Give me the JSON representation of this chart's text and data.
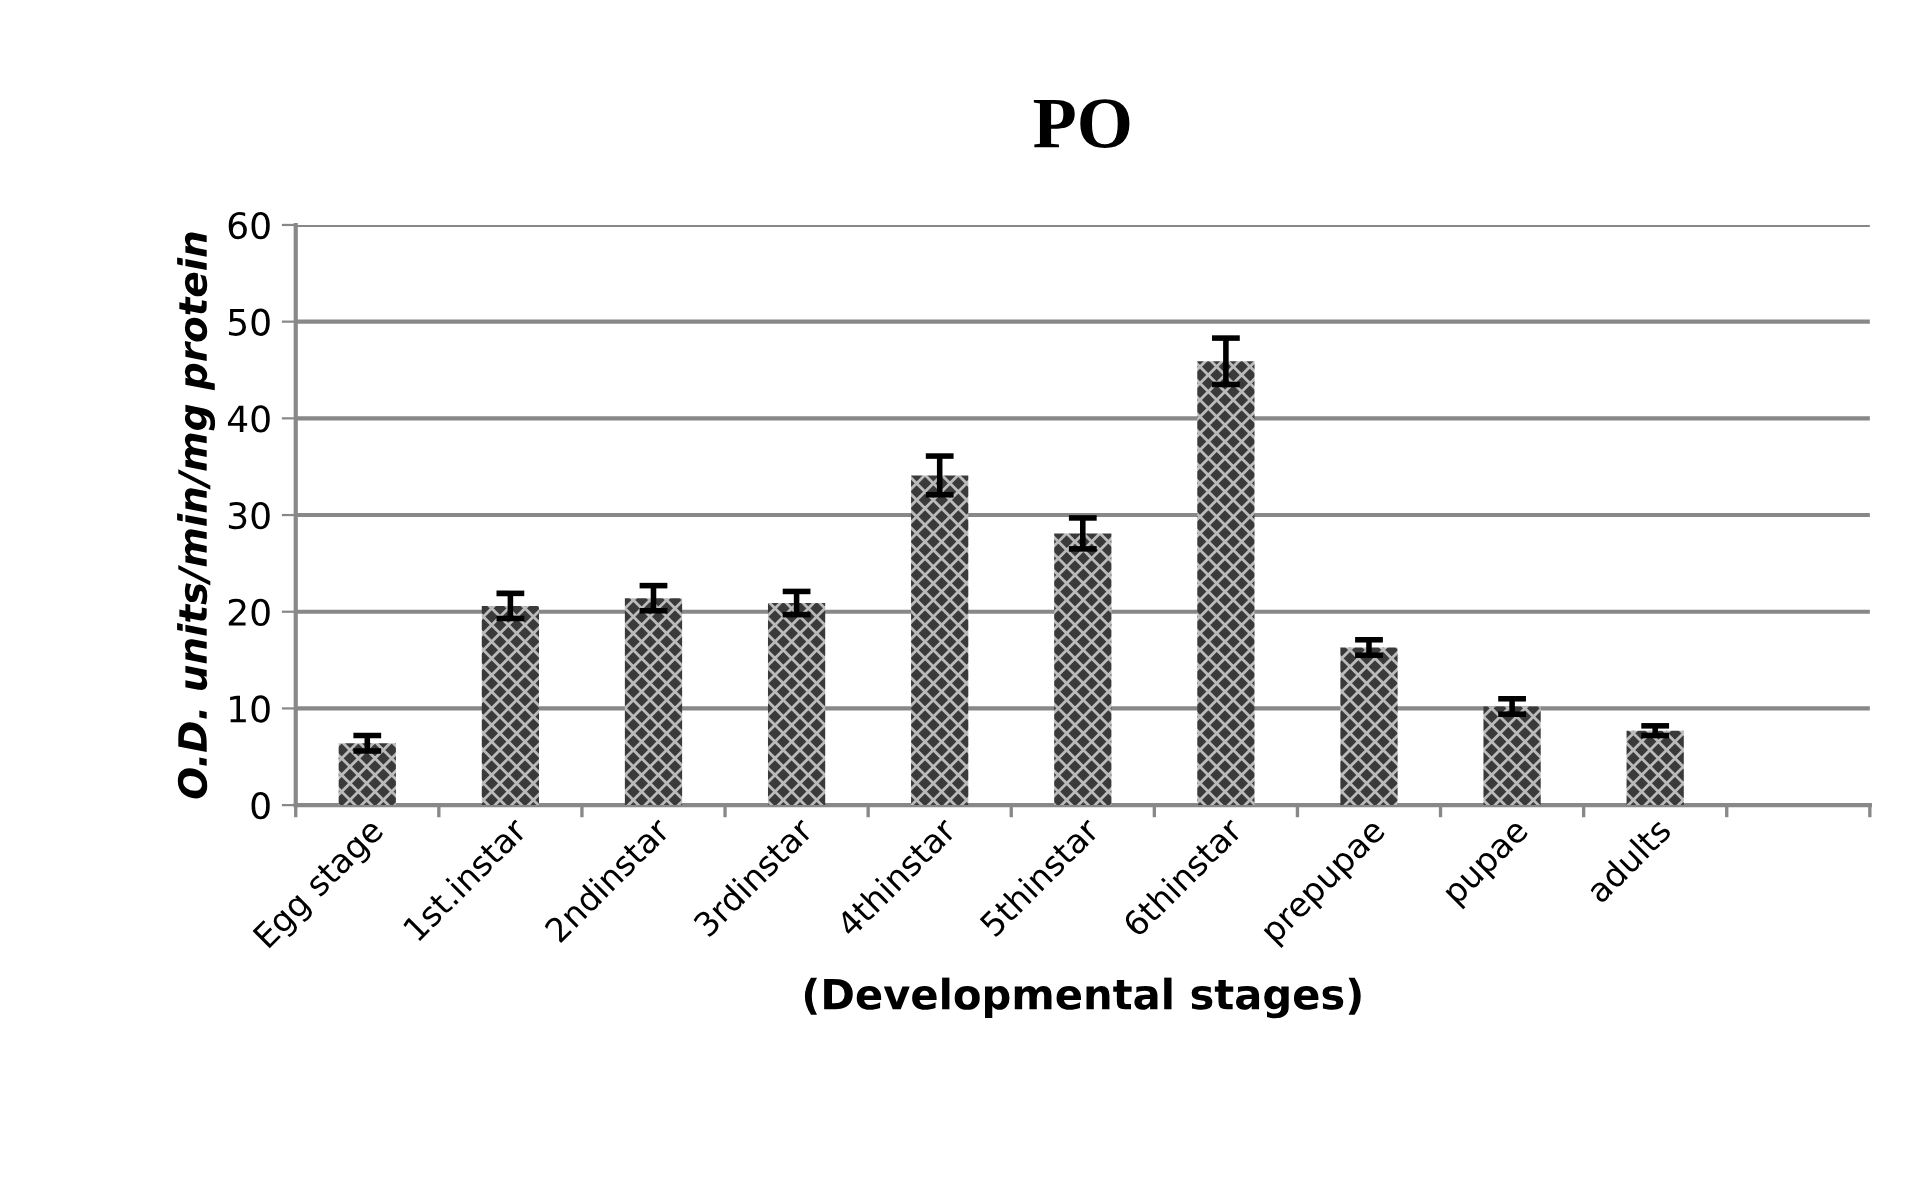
{
  "chart_data": {
    "type": "bar",
    "title": "PO",
    "xlabel": "(Developmental stages)",
    "ylabel": "O.D. units/min/mg protein",
    "categories": [
      "Egg stage",
      "1st.instar",
      "2ndinstar",
      "3rdinstar",
      "4thinstar",
      "5thinstar",
      "6thinstar",
      "prepupae",
      "pupae",
      "adults",
      null
    ],
    "values": [
      6.4,
      20.6,
      21.4,
      20.9,
      34.1,
      28.1,
      45.9,
      16.3,
      10.2,
      7.7,
      null
    ],
    "errors": [
      0.8,
      1.3,
      1.3,
      1.2,
      2.0,
      1.6,
      2.4,
      0.8,
      0.8,
      0.5,
      null
    ],
    "color": "#3a3a3a",
    "ylim": [
      0,
      60
    ],
    "yticks": [
      0,
      10,
      20,
      30,
      40,
      50,
      60
    ],
    "grid": "y",
    "legend": false
  }
}
